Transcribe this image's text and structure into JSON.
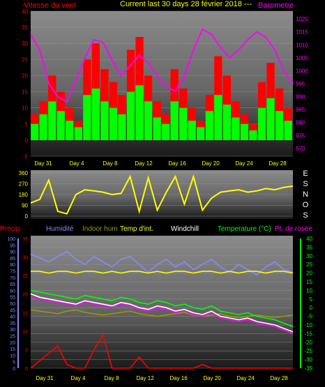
{
  "header": {
    "wind_label": "Vitesse du vent",
    "period_label": "Current last 30 days 28 février 2018 ---",
    "baro_label": "Barometre"
  },
  "mid": {
    "compass": [
      "E",
      "S",
      "N",
      "O",
      "S"
    ]
  },
  "bottom": {
    "labels": [
      "Précip.",
      "Humidité",
      "Indoor hum",
      "Temp d'int.",
      "Windchill",
      "Temperature (°C)",
      "Pt. de rosée"
    ]
  },
  "colors": {
    "wind_gust": "#ff0000",
    "wind_avg": "#00ff00",
    "baro": "#ff00ff",
    "wind_dir": "#ffff00",
    "precip": "#ff0000",
    "humidity": "#8888ff",
    "indoor_hum": "#999900",
    "indoor_temp": "#ffff00",
    "windchill": "#ffffff",
    "temperature": "#00ff00",
    "dewpoint": "#ff00ff"
  },
  "chart_data": [
    {
      "type": "area",
      "title": "Vitesse du vent / Barometre",
      "x_ticks": [
        "Day 31",
        "Day 4",
        "Day 8",
        "Day 12",
        "Day 16",
        "Day 20",
        "Day 24",
        "Day 28"
      ],
      "y_left": {
        "label": "Vitesse du vent",
        "ticks": [
          -5,
          0,
          5,
          10,
          15,
          20,
          25,
          30,
          35,
          40
        ],
        "lim": [
          -5,
          40
        ]
      },
      "y_right": {
        "label": "Barometre",
        "ticks": [
          970,
          975,
          980,
          985,
          990,
          995,
          1000,
          1005,
          1010,
          1015,
          1020
        ],
        "lim": [
          967,
          1023
        ]
      },
      "series": [
        {
          "name": "Gust",
          "axis": "left",
          "values": [
            8,
            12,
            20,
            15,
            10,
            6,
            25,
            30,
            22,
            18,
            14,
            28,
            32,
            20,
            12,
            8,
            22,
            16,
            10,
            6,
            14,
            26,
            20,
            12,
            8,
            5,
            18,
            24,
            16,
            10
          ]
        },
        {
          "name": "Average",
          "axis": "left",
          "values": [
            5,
            8,
            12,
            9,
            6,
            4,
            14,
            16,
            12,
            10,
            8,
            15,
            17,
            12,
            7,
            5,
            12,
            10,
            6,
            4,
            9,
            14,
            11,
            7,
            5,
            3,
            10,
            13,
            9,
            6
          ]
        },
        {
          "name": "Barometre",
          "axis": "right",
          "values": [
            1014,
            1008,
            995,
            990,
            988,
            996,
            1005,
            1012,
            1011,
            1004,
            998,
            1002,
            1006,
            1003,
            998,
            994,
            992,
            998,
            1008,
            1016,
            1014,
            1009,
            1005,
            1008,
            1012,
            1015,
            1013,
            1008,
            1000,
            995
          ]
        }
      ]
    },
    {
      "type": "line",
      "title": "Wind direction",
      "y_ticks": [
        0,
        90,
        180,
        270,
        360
      ],
      "ylim": [
        0,
        360
      ],
      "series": [
        {
          "name": "Direction",
          "values": [
            110,
            140,
            300,
            40,
            20,
            180,
            220,
            210,
            200,
            180,
            190,
            330,
            40,
            320,
            50,
            200,
            330,
            100,
            330,
            50,
            150,
            200,
            210,
            220,
            200,
            210,
            230,
            220,
            240,
            250
          ]
        }
      ]
    },
    {
      "type": "line",
      "title": "Temperature / Humidité / Précip.",
      "x_ticks": [
        "Day 31",
        "Day 4",
        "Day 8",
        "Day 12",
        "Day 16",
        "Day 20",
        "Day 24",
        "Day 28"
      ],
      "y_left_outer": {
        "label": "Précip.",
        "ticks": [
          0,
          5,
          10,
          15,
          20,
          25,
          30,
          35,
          40,
          45,
          50,
          55,
          60,
          65,
          70,
          75,
          80,
          85,
          90,
          95,
          100
        ],
        "lim": [
          0,
          100
        ]
      },
      "y_left_inner": {
        "ticks": [
          0,
          5,
          10,
          15,
          20,
          25,
          30,
          35
        ],
        "lim": [
          0,
          35
        ]
      },
      "y_right": {
        "ticks": [
          -35,
          -30,
          -25,
          -20,
          -15,
          -10,
          -5,
          0,
          5,
          10,
          15,
          20,
          25,
          30,
          35,
          40
        ],
        "lim": [
          -35,
          40
        ]
      },
      "series": [
        {
          "name": "Humidité",
          "axis": "left_outer",
          "values": [
            88,
            85,
            82,
            86,
            90,
            84,
            80,
            86,
            82,
            78,
            84,
            86,
            80,
            74,
            80,
            84,
            78,
            82,
            76,
            80,
            84,
            78,
            74,
            80,
            76,
            72,
            78,
            82,
            76,
            74
          ]
        },
        {
          "name": "Indoor hum",
          "axis": "left_outer",
          "values": [
            45,
            44,
            43,
            42,
            44,
            45,
            43,
            42,
            41,
            42,
            43,
            44,
            42,
            41,
            40,
            41,
            42,
            43,
            41,
            40,
            41,
            42,
            40,
            39,
            40,
            41,
            40,
            39,
            40,
            41
          ]
        },
        {
          "name": "Temp d'int.",
          "axis": "right",
          "values": [
            21,
            21,
            20,
            21,
            21,
            20,
            21,
            21,
            20,
            21,
            20,
            21,
            21,
            20,
            21,
            20,
            21,
            21,
            20,
            21,
            21,
            20,
            21,
            20,
            21,
            21,
            20,
            21,
            21,
            20
          ]
        },
        {
          "name": "Windchill",
          "axis": "right",
          "values": [
            8,
            6,
            5,
            4,
            3,
            2,
            4,
            3,
            2,
            1,
            3,
            2,
            0,
            -1,
            1,
            0,
            -2,
            -1,
            -3,
            -4,
            -2,
            -5,
            -6,
            -7,
            -6,
            -8,
            -9,
            -10,
            -12,
            -14
          ]
        },
        {
          "name": "Temperature (°C)",
          "axis": "right",
          "values": [
            10,
            9,
            8,
            7,
            6,
            5,
            7,
            6,
            5,
            4,
            6,
            5,
            3,
            2,
            4,
            3,
            1,
            2,
            0,
            -1,
            1,
            -2,
            -3,
            -4,
            -3,
            -5,
            -6,
            -7,
            -9,
            -11
          ]
        },
        {
          "name": "Pt. de rosée",
          "axis": "right",
          "values": [
            6,
            5,
            4,
            3,
            2,
            1,
            3,
            2,
            1,
            0,
            2,
            1,
            -1,
            -2,
            0,
            -1,
            -3,
            -2,
            -4,
            -5,
            -3,
            -6,
            -7,
            -8,
            -7,
            -9,
            -10,
            -11,
            -13,
            -15
          ]
        },
        {
          "name": "Précip.",
          "axis": "left_inner",
          "values": [
            0,
            2,
            4,
            6,
            1,
            0,
            0,
            5,
            9,
            0,
            0,
            0,
            3,
            0,
            0,
            0,
            0,
            0,
            0,
            1,
            0,
            0,
            0,
            0,
            0,
            0,
            0,
            0,
            0,
            0
          ]
        }
      ]
    }
  ]
}
